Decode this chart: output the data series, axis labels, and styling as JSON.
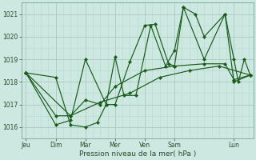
{
  "background_color": "#cce8e0",
  "grid_color_major": "#a8c8c0",
  "grid_color_minor": "#b8d8d0",
  "line_color": "#1a5c1a",
  "marker_color": "#1a5c1a",
  "xlabel": "Pression niveau de la mer( hPa )",
  "ylim": [
    1015.5,
    1021.5
  ],
  "yticks": [
    1016,
    1017,
    1018,
    1019,
    1020,
    1021
  ],
  "xlim": [
    -0.15,
    7.65
  ],
  "day_positions": [
    0,
    1,
    2,
    3,
    4,
    5,
    7
  ],
  "day_labels": [
    "Jeu",
    "Dim",
    "Mar",
    "Mer",
    "Ven",
    "Sam",
    "Lun"
  ],
  "series": [
    [
      0.0,
      1018.4,
      1.0,
      1018.2,
      1.5,
      1016.1,
      2.0,
      1016.0,
      2.4,
      1016.2,
      2.7,
      1017.0,
      3.0,
      1017.0,
      3.5,
      1018.9,
      4.0,
      1020.5,
      4.35,
      1020.55,
      4.8,
      1018.8,
      5.0,
      1018.7,
      5.3,
      1021.3,
      5.7,
      1021.0,
      6.0,
      1020.0,
      6.7,
      1021.0,
      7.0,
      1019.0,
      7.15,
      1018.0,
      7.35,
      1019.0,
      7.55,
      1018.3
    ],
    [
      0.0,
      1018.4,
      1.0,
      1016.1,
      1.5,
      1016.3,
      2.0,
      1019.0,
      2.7,
      1017.0,
      3.0,
      1019.1,
      3.3,
      1017.4,
      3.7,
      1017.4,
      4.2,
      1020.5,
      4.7,
      1018.7,
      5.0,
      1019.4,
      5.3,
      1021.3,
      6.0,
      1019.0,
      6.7,
      1021.0,
      7.0,
      1018.0,
      7.55,
      1018.3
    ],
    [
      0.0,
      1018.4,
      1.0,
      1016.5,
      1.5,
      1016.5,
      2.0,
      1017.2,
      2.5,
      1017.0,
      3.0,
      1017.8,
      4.0,
      1018.5,
      5.0,
      1018.7,
      6.0,
      1018.8,
      6.7,
      1018.8,
      7.0,
      1018.1,
      7.55,
      1018.3
    ],
    [
      0.0,
      1018.4,
      1.5,
      1016.5,
      2.5,
      1017.1,
      3.5,
      1017.5,
      4.5,
      1018.2,
      5.5,
      1018.5,
      6.5,
      1018.7,
      7.55,
      1018.3
    ]
  ]
}
